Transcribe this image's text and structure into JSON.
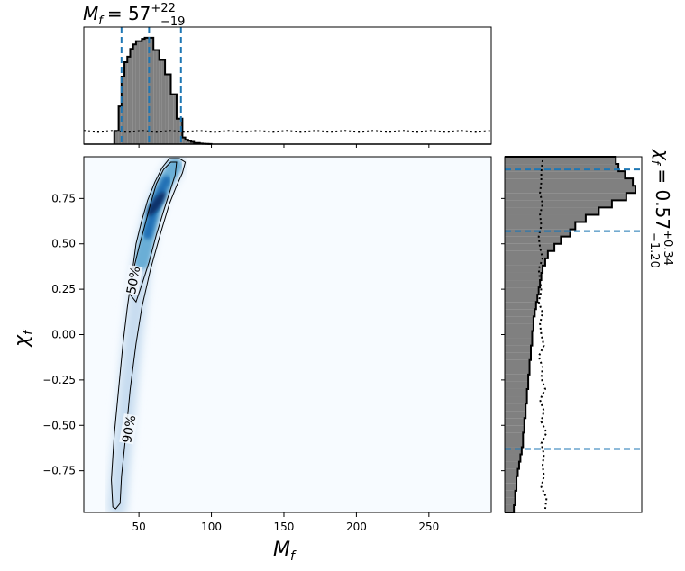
{
  "chart_data": {
    "type": "corner",
    "colors": {
      "hist_fill": "#808080",
      "hist_edge": "#000000",
      "quantile_line": "#1f77b4",
      "prior_line": "#000000",
      "density_low": "#f7fbff",
      "density_high": "#08306b",
      "contour": "#000000"
    },
    "top_title": {
      "base": "M",
      "sub": "f",
      "value": "= 57",
      "plus": "+22",
      "minus": "−19"
    },
    "right_title": {
      "base": "χ",
      "sub": "f",
      "value": "= 0.57",
      "plus": "+0.34",
      "minus": "−1.20"
    },
    "xlabel": {
      "base": "M",
      "sub": "f"
    },
    "ylabel": {
      "base": "χ",
      "sub": "f"
    },
    "xlim": [
      12,
      293
    ],
    "ylim": [
      -0.98,
      0.98
    ],
    "xticks": [
      50,
      100,
      150,
      200,
      250
    ],
    "xtick_labels": [
      "50",
      "100",
      "150",
      "200",
      "250"
    ],
    "yticks": [
      0.75,
      0.5,
      0.25,
      0.0,
      -0.25,
      -0.5,
      -0.75
    ],
    "ytick_labels": [
      "0.75",
      "0.50",
      "0.25",
      "0.00",
      "−0.25",
      "−0.50",
      "−0.75"
    ],
    "mass_hist": {
      "bin_edges": [
        33,
        36,
        38,
        40,
        42,
        44,
        46,
        48,
        50,
        52,
        54,
        56,
        58,
        60,
        62,
        64,
        66,
        68,
        70,
        72,
        74,
        76,
        78,
        80,
        82,
        84,
        86,
        88,
        90,
        92,
        94,
        96,
        98,
        100
      ],
      "density": [
        0.12,
        0.34,
        0.61,
        0.74,
        0.79,
        0.86,
        0.9,
        0.93,
        0.93,
        0.95,
        0.96,
        0.96,
        0.96,
        0.85,
        0.85,
        0.76,
        0.76,
        0.63,
        0.63,
        0.45,
        0.45,
        0.23,
        0.23,
        0.06,
        0.04,
        0.03,
        0.02,
        0.01,
        0.01,
        0.005,
        0.003,
        0.002,
        0.001
      ],
      "quantiles": [
        38,
        57,
        79
      ]
    },
    "mass_prior": {
      "x": [
        12,
        22,
        32,
        42,
        52,
        62,
        72,
        82,
        92,
        102,
        112,
        122,
        132,
        142,
        152,
        162,
        172,
        182,
        192,
        202,
        212,
        222,
        232,
        242,
        252,
        262,
        272,
        282,
        293
      ],
      "density": [
        0.12,
        0.11,
        0.12,
        0.11,
        0.12,
        0.11,
        0.12,
        0.11,
        0.12,
        0.11,
        0.12,
        0.11,
        0.12,
        0.11,
        0.12,
        0.11,
        0.12,
        0.11,
        0.12,
        0.11,
        0.12,
        0.11,
        0.12,
        0.11,
        0.12,
        0.11,
        0.12,
        0.11,
        0.12
      ]
    },
    "spin_hist": {
      "y": [
        0.96,
        0.92,
        0.88,
        0.84,
        0.8,
        0.76,
        0.72,
        0.68,
        0.64,
        0.6,
        0.56,
        0.52,
        0.48,
        0.44,
        0.4,
        0.36,
        0.32,
        0.28,
        0.24,
        0.2,
        0.16,
        0.12,
        0.08,
        0.04,
        0.0,
        -0.04,
        -0.08,
        -0.12,
        -0.16,
        -0.2,
        -0.24,
        -0.28,
        -0.32,
        -0.36,
        -0.4,
        -0.44,
        -0.48,
        -0.52,
        -0.56,
        -0.6,
        -0.64,
        -0.68,
        -0.72,
        -0.76,
        -0.8,
        -0.84,
        -0.88,
        -0.92,
        -0.96
      ],
      "density": [
        0.85,
        0.87,
        0.92,
        0.98,
        1.0,
        0.93,
        0.82,
        0.72,
        0.62,
        0.54,
        0.5,
        0.43,
        0.38,
        0.33,
        0.31,
        0.29,
        0.28,
        0.27,
        0.26,
        0.25,
        0.24,
        0.23,
        0.22,
        0.22,
        0.21,
        0.21,
        0.2,
        0.2,
        0.19,
        0.19,
        0.18,
        0.18,
        0.17,
        0.17,
        0.16,
        0.16,
        0.15,
        0.15,
        0.14,
        0.14,
        0.13,
        0.12,
        0.11,
        0.1,
        0.09,
        0.09,
        0.08,
        0.08,
        0.07
      ],
      "quantiles": [
        0.91,
        0.57,
        -0.63
      ]
    },
    "spin_prior": {
      "y": [
        0.96,
        0.9,
        0.84,
        0.78,
        0.72,
        0.66,
        0.6,
        0.54,
        0.48,
        0.42,
        0.36,
        0.3,
        0.24,
        0.18,
        0.12,
        0.06,
        0.0,
        -0.06,
        -0.12,
        -0.18,
        -0.24,
        -0.3,
        -0.36,
        -0.42,
        -0.48,
        -0.54,
        -0.6,
        -0.66,
        -0.72,
        -0.78,
        -0.84,
        -0.9,
        -0.96
      ],
      "density": [
        0.29,
        0.28,
        0.28,
        0.27,
        0.29,
        0.27,
        0.28,
        0.26,
        0.27,
        0.29,
        0.26,
        0.27,
        0.28,
        0.26,
        0.29,
        0.27,
        0.28,
        0.3,
        0.26,
        0.29,
        0.28,
        0.31,
        0.27,
        0.3,
        0.28,
        0.32,
        0.28,
        0.3,
        0.29,
        0.3,
        0.28,
        0.32,
        0.31
      ]
    },
    "density_ridge": {
      "points": [
        [
          35,
          -0.95
        ],
        [
          37,
          -0.75
        ],
        [
          40,
          -0.5
        ],
        [
          43,
          -0.25
        ],
        [
          46,
          0.0
        ],
        [
          49,
          0.2
        ],
        [
          52,
          0.4
        ],
        [
          56,
          0.55
        ],
        [
          60,
          0.68
        ],
        [
          64,
          0.77
        ],
        [
          69,
          0.85
        ],
        [
          75,
          0.93
        ]
      ],
      "peak_mass": 62,
      "peak_spin": 0.72
    },
    "contours": [
      {
        "label": "50%",
        "label_at": [
          46,
          0.3
        ],
        "label_angle": -80,
        "outline": [
          [
            44,
            0.22
          ],
          [
            46,
            0.35
          ],
          [
            50,
            0.48
          ],
          [
            54,
            0.6
          ],
          [
            58,
            0.72
          ],
          [
            62,
            0.83
          ],
          [
            67,
            0.91
          ],
          [
            72,
            0.95
          ],
          [
            76,
            0.95
          ],
          [
            75,
            0.88
          ],
          [
            71,
            0.78
          ],
          [
            67,
            0.68
          ],
          [
            62,
            0.55
          ],
          [
            57,
            0.4
          ],
          [
            53,
            0.3
          ],
          [
            48,
            0.18
          ],
          [
            44,
            0.22
          ]
        ]
      },
      {
        "label": "90%",
        "label_at": [
          43,
          -0.52
        ],
        "label_angle": -80,
        "outline": [
          [
            32,
            -0.95
          ],
          [
            31,
            -0.8
          ],
          [
            33,
            -0.55
          ],
          [
            36,
            -0.3
          ],
          [
            39,
            -0.05
          ],
          [
            42,
            0.15
          ],
          [
            45,
            0.32
          ],
          [
            48,
            0.5
          ],
          [
            52,
            0.63
          ],
          [
            56,
            0.74
          ],
          [
            61,
            0.84
          ],
          [
            66,
            0.92
          ],
          [
            71,
            0.97
          ],
          [
            78,
            0.97
          ],
          [
            82,
            0.95
          ],
          [
            80,
            0.89
          ],
          [
            76,
            0.82
          ],
          [
            71,
            0.72
          ],
          [
            65,
            0.56
          ],
          [
            58,
            0.36
          ],
          [
            52,
            0.15
          ],
          [
            48,
            -0.05
          ],
          [
            44,
            -0.3
          ],
          [
            41,
            -0.55
          ],
          [
            38,
            -0.78
          ],
          [
            37,
            -0.93
          ],
          [
            34,
            -0.96
          ],
          [
            32,
            -0.95
          ]
        ]
      }
    ]
  }
}
